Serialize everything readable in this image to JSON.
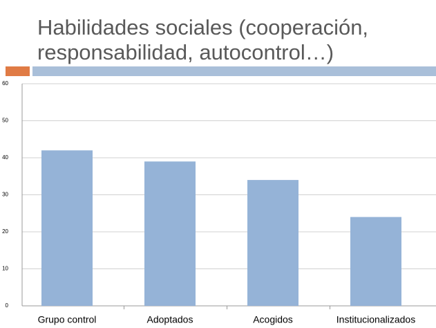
{
  "chart_data": {
    "type": "bar",
    "title": "Habilidades sociales (cooperación, responsabilidad, autocontrol…)",
    "categories": [
      "Grupo control",
      "Adoptados",
      "Acogidos",
      "Institucionalizados"
    ],
    "values": [
      42,
      39,
      34,
      24
    ],
    "color": "#95b3d7",
    "ylim": [
      0,
      60
    ],
    "yticks": [
      0,
      10,
      20,
      30,
      40,
      50,
      60
    ],
    "grid": true
  }
}
